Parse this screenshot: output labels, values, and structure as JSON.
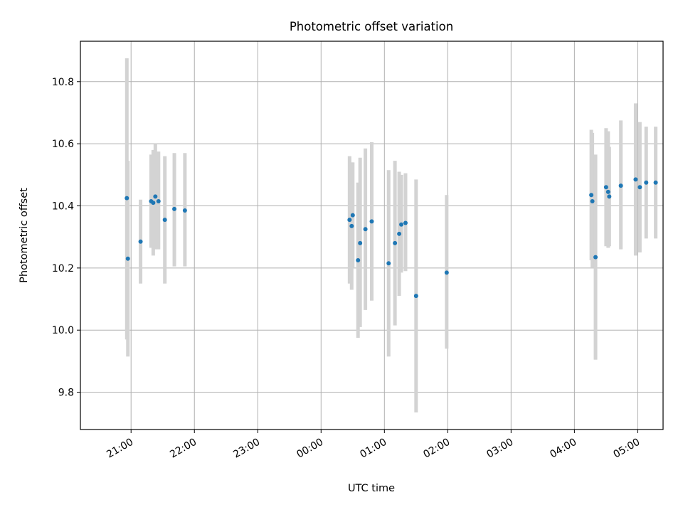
{
  "chart_data": {
    "type": "scatter",
    "title": "Photometric offset variation",
    "xlabel": "UTC time",
    "ylabel": "Photometric offset",
    "grid": true,
    "xlim_hours": [
      20.2,
      29.4
    ],
    "ylim": [
      9.68,
      10.93
    ],
    "x_ticks": [
      "21:00",
      "22:00",
      "23:00",
      "00:00",
      "01:00",
      "02:00",
      "03:00",
      "04:00",
      "05:00"
    ],
    "y_ticks": [
      "9.8",
      "10.0",
      "10.2",
      "10.4",
      "10.6",
      "10.8"
    ],
    "colors": {
      "point": "#1f77b4",
      "errorbar": "#d3d3d3",
      "grid": "#b0b0b0"
    },
    "points": [
      {
        "t": "20:56",
        "y": 10.425,
        "lo": 9.97,
        "hi": 10.875
      },
      {
        "t": "20:57",
        "y": 10.23,
        "lo": 9.915,
        "hi": 10.545
      },
      {
        "t": "21:09",
        "y": 10.285,
        "lo": 10.15,
        "hi": 10.42
      },
      {
        "t": "21:19",
        "y": 10.415,
        "lo": 10.265,
        "hi": 10.565
      },
      {
        "t": "21:21",
        "y": 10.41,
        "lo": 10.24,
        "hi": 10.58
      },
      {
        "t": "21:23",
        "y": 10.43,
        "lo": 10.26,
        "hi": 10.6
      },
      {
        "t": "21:26",
        "y": 10.415,
        "lo": 10.26,
        "hi": 10.575
      },
      {
        "t": "21:32",
        "y": 10.355,
        "lo": 10.15,
        "hi": 10.56
      },
      {
        "t": "21:41",
        "y": 10.39,
        "lo": 10.205,
        "hi": 10.57
      },
      {
        "t": "21:51",
        "y": 10.385,
        "lo": 10.205,
        "hi": 10.57
      },
      {
        "t": "00:27",
        "y": 10.355,
        "lo": 10.15,
        "hi": 10.56
      },
      {
        "t": "00:29",
        "y": 10.335,
        "lo": 10.13,
        "hi": 10.54
      },
      {
        "t": "00:30",
        "y": 10.37,
        "lo": 10.2,
        "hi": 10.54
      },
      {
        "t": "00:35",
        "y": 10.225,
        "lo": 9.975,
        "hi": 10.475
      },
      {
        "t": "00:37",
        "y": 10.28,
        "lo": 10.01,
        "hi": 10.555
      },
      {
        "t": "00:42",
        "y": 10.325,
        "lo": 10.065,
        "hi": 10.585
      },
      {
        "t": "00:48",
        "y": 10.35,
        "lo": 10.095,
        "hi": 10.605
      },
      {
        "t": "01:04",
        "y": 10.215,
        "lo": 9.915,
        "hi": 10.515
      },
      {
        "t": "01:10",
        "y": 10.28,
        "lo": 10.015,
        "hi": 10.545
      },
      {
        "t": "01:14",
        "y": 10.31,
        "lo": 10.11,
        "hi": 10.51
      },
      {
        "t": "01:16",
        "y": 10.34,
        "lo": 10.185,
        "hi": 10.5
      },
      {
        "t": "01:20",
        "y": 10.345,
        "lo": 10.19,
        "hi": 10.505
      },
      {
        "t": "01:30",
        "y": 10.11,
        "lo": 9.735,
        "hi": 10.485
      },
      {
        "t": "01:59",
        "y": 10.185,
        "lo": 9.94,
        "hi": 10.435
      },
      {
        "t": "04:16",
        "y": 10.435,
        "lo": 10.225,
        "hi": 10.645
      },
      {
        "t": "04:17",
        "y": 10.415,
        "lo": 10.2,
        "hi": 10.635
      },
      {
        "t": "04:20",
        "y": 10.235,
        "lo": 9.905,
        "hi": 10.565
      },
      {
        "t": "04:30",
        "y": 10.46,
        "lo": 10.27,
        "hi": 10.65
      },
      {
        "t": "04:32",
        "y": 10.445,
        "lo": 10.265,
        "hi": 10.64
      },
      {
        "t": "04:33",
        "y": 10.43,
        "lo": 10.27,
        "hi": 10.59
      },
      {
        "t": "04:44",
        "y": 10.465,
        "lo": 10.26,
        "hi": 10.675
      },
      {
        "t": "04:58",
        "y": 10.485,
        "lo": 10.24,
        "hi": 10.73
      },
      {
        "t": "05:02",
        "y": 10.46,
        "lo": 10.25,
        "hi": 10.67
      },
      {
        "t": "05:08",
        "y": 10.475,
        "lo": 10.295,
        "hi": 10.655
      },
      {
        "t": "05:17",
        "y": 10.475,
        "lo": 10.295,
        "hi": 10.655
      }
    ]
  }
}
